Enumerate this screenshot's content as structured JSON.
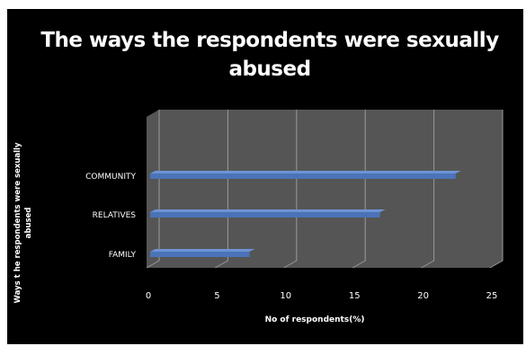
{
  "chart_data": {
    "type": "bar",
    "orientation": "horizontal",
    "title_lines": [
      "The ways the respondents were sexually",
      "abused"
    ],
    "categories": [
      "COMMUNITY",
      "RELATIVES",
      "FAMILY"
    ],
    "values": [
      22.5,
      17,
      7.5
    ],
    "xlabel": "No of respondents(%)",
    "ylabel_lines": [
      "Ways t he respondents were sexually",
      "abused"
    ],
    "xlim": [
      0,
      25
    ],
    "xticks": [
      "0",
      "5",
      "10",
      "15",
      "20",
      "25"
    ],
    "grid": true,
    "legend": "none"
  },
  "colors": {
    "background": "#000000",
    "plot_area": "#555555",
    "bar": "#4a73b8",
    "text": "#ffffff"
  }
}
